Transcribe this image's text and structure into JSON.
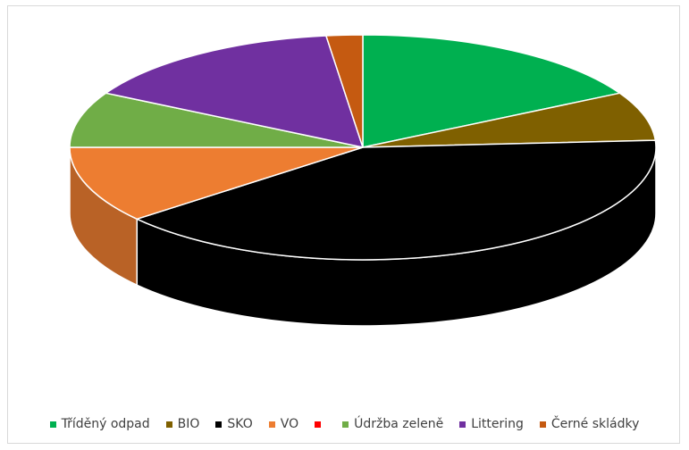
{
  "chart_data": {
    "type": "pie",
    "title": "",
    "is_3d": true,
    "start_angle_deg": 0,
    "direction": "clockwise",
    "legend_position": "bottom",
    "series": [
      {
        "name": "Tříděný odpad",
        "value": 17.0,
        "color": "#00b050"
      },
      {
        "name": "BIO",
        "value": 7.0,
        "color": "#7f6000"
      },
      {
        "name": "SKO",
        "value": 40.0,
        "color": "#000000"
      },
      {
        "name": "VO",
        "value": 11.0,
        "color": "#ed7d31"
      },
      {
        "name": "",
        "value": 0.0,
        "color": "#ff0000"
      },
      {
        "name": "Údržba zeleně",
        "value": 8.0,
        "color": "#70ad47"
      },
      {
        "name": "Littering",
        "value": 15.0,
        "color": "#7030a0"
      },
      {
        "name": "Černé skládky",
        "value": 2.0,
        "color": "#c55a11"
      }
    ]
  }
}
